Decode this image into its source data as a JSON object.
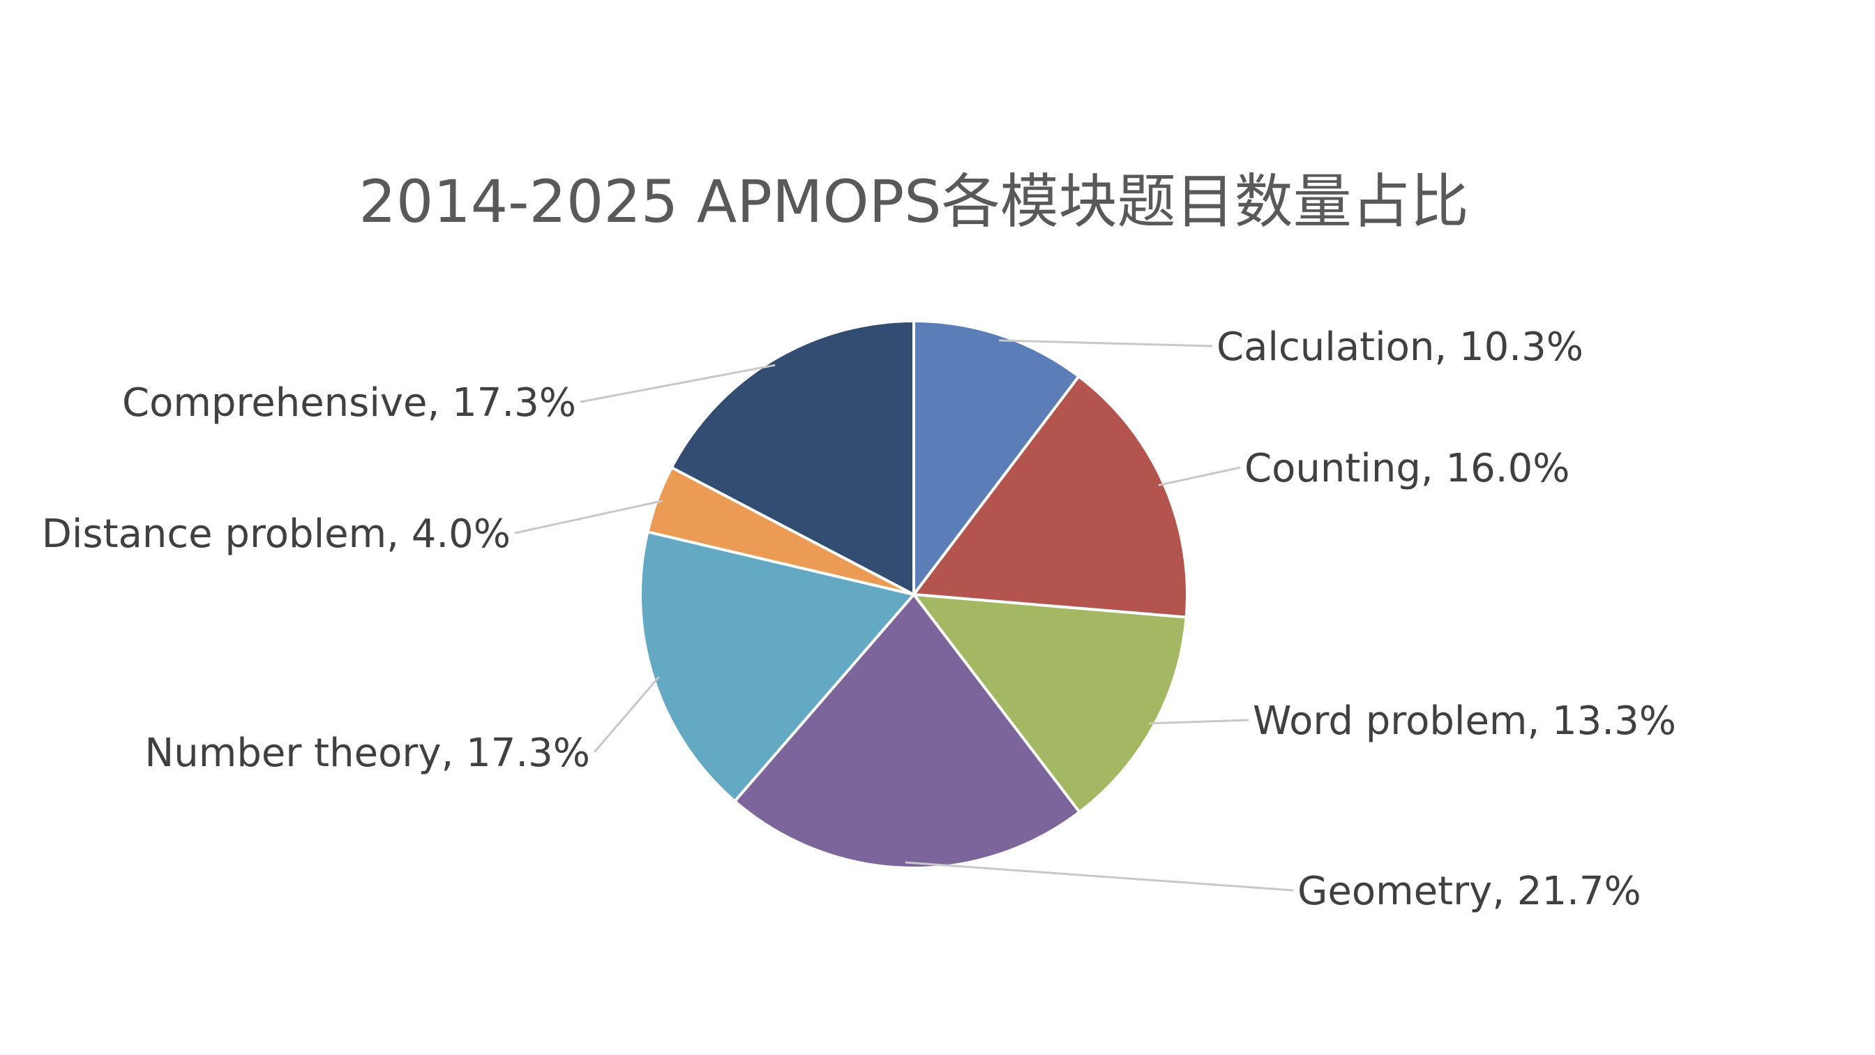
{
  "chart_data": {
    "type": "pie",
    "title": "2014-2025 APMOPS各模块题目数量占比",
    "start_angle": "12 o'clock",
    "direction": "clockwise",
    "slices": [
      {
        "name": "Calculation",
        "value": 10.3,
        "label": "Calculation, 10.3%",
        "color": "#5B7DB8"
      },
      {
        "name": "Counting",
        "value": 16.0,
        "label": "Counting, 16.0%",
        "color": "#B3554E"
      },
      {
        "name": "Word problem",
        "value": 13.3,
        "label": "Word problem, 13.3%",
        "color": "#A4B864"
      },
      {
        "name": "Geometry",
        "value": 21.7,
        "label": "Geometry, 21.7%",
        "color": "#7B659B"
      },
      {
        "name": "Number theory",
        "value": 17.3,
        "label": "Number theory, 17.3%",
        "color": "#64A9C3"
      },
      {
        "name": "Distance problem",
        "value": 4.0,
        "label": "Distance problem, 4.0%",
        "color": "#EC9B55"
      },
      {
        "name": "Comprehensive",
        "value": 17.3,
        "label": "Comprehensive, 17.3%",
        "color": "#324C72"
      }
    ],
    "legend": "none"
  }
}
